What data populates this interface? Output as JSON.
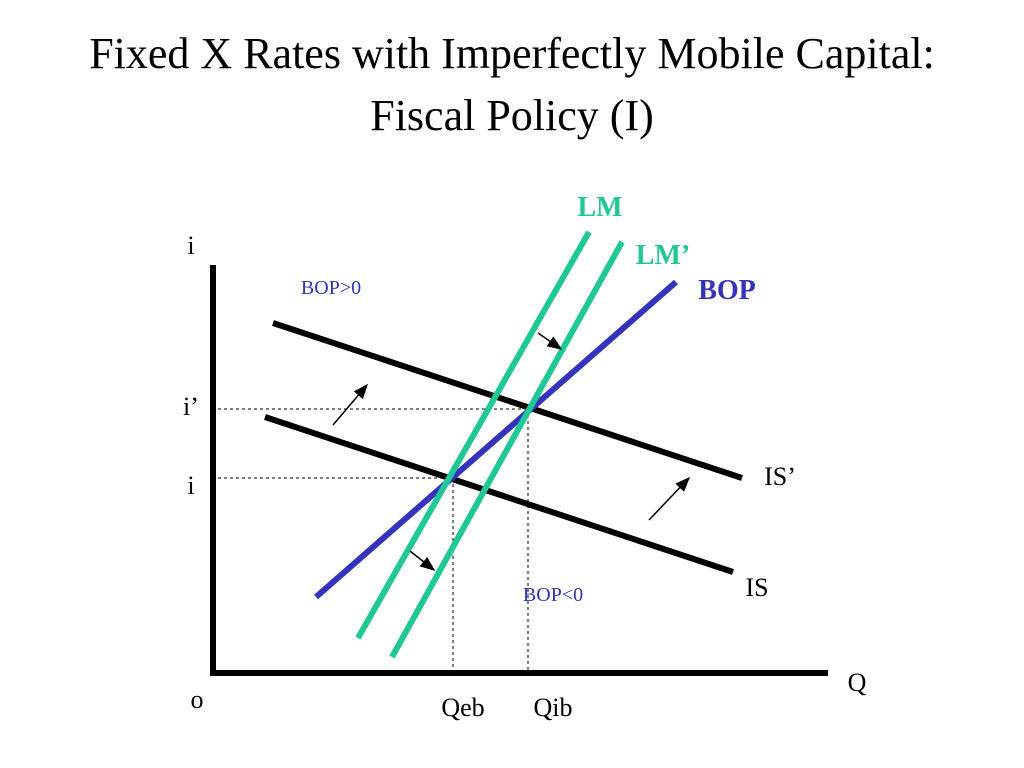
{
  "title": {
    "line1": "Fixed X Rates with Imperfectly Mobile Capital:",
    "line2": "Fiscal Policy (I)"
  },
  "curves": {
    "lm": "LM",
    "lm_prime": "LM’",
    "bop": "BOP",
    "is_prime": "IS’",
    "is": "IS"
  },
  "regions": {
    "bop_above": "BOP>0",
    "bop_below": "BOP<0"
  },
  "axes": {
    "y": "i",
    "x": "Q",
    "origin": "o"
  },
  "levels": {
    "i_prime": "i’",
    "i": "i"
  },
  "outputs": {
    "qeb": "Qeb",
    "qib": "Qib"
  }
}
